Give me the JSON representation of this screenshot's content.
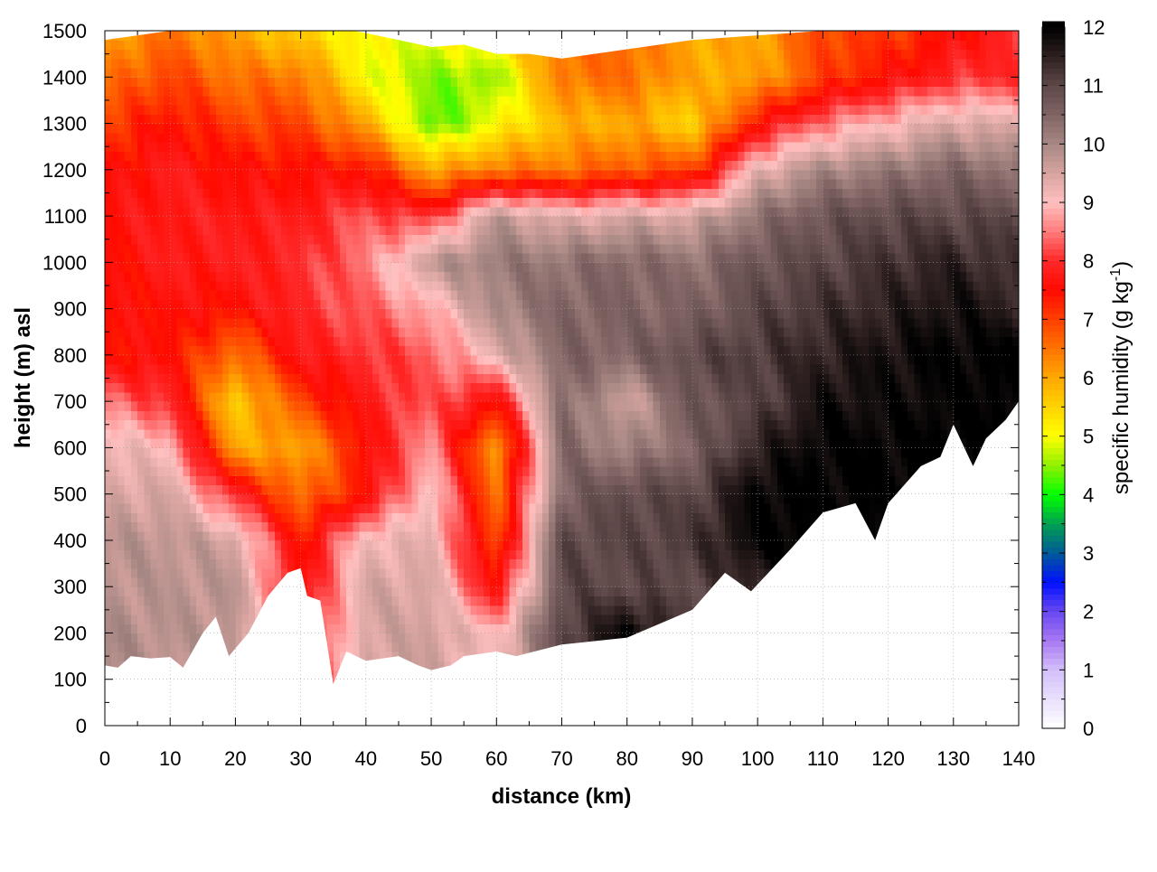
{
  "chart_data": {
    "type": "heatmap",
    "xlabel": "distance (km)",
    "ylabel": "height (m) asl",
    "colorbar_label": "specific humidity (g kg",
    "colorbar_label_sup": "-1",
    "colorbar_label_end": ")",
    "xlim": [
      0,
      140
    ],
    "ylim": [
      0,
      1500
    ],
    "clim": [
      0,
      12
    ],
    "grid": true,
    "x_ticks": [
      "0",
      "10",
      "20",
      "30",
      "40",
      "50",
      "60",
      "70",
      "80",
      "90",
      "100",
      "110",
      "120",
      "130",
      "140"
    ],
    "y_ticks": [
      "0",
      "100",
      "200",
      "300",
      "400",
      "500",
      "600",
      "700",
      "800",
      "900",
      "1000",
      "1100",
      "1200",
      "1300",
      "1400",
      "1500"
    ],
    "colorbar_ticks": [
      "0",
      "1",
      "2",
      "3",
      "4",
      "5",
      "6",
      "7",
      "8",
      "9",
      "10",
      "11",
      "12"
    ],
    "grid_x_km": [
      0,
      10,
      20,
      30,
      40,
      50,
      60,
      70,
      80,
      90,
      100,
      110,
      120,
      130,
      140
    ],
    "grid_height_m": [
      100,
      200,
      300,
      400,
      500,
      600,
      700,
      800,
      900,
      1000,
      1100,
      1200,
      1300,
      1400,
      1500
    ],
    "values": [
      [
        10,
        9.8,
        9.8,
        7.5,
        9.5,
        9.6,
        9,
        11,
        12,
        11,
        11.5,
        12,
        12,
        12,
        12
      ],
      [
        10,
        9.8,
        9.8,
        7.5,
        9.5,
        9.6,
        9,
        11,
        12,
        11,
        11.5,
        12,
        12,
        12,
        12
      ],
      [
        9.8,
        9.8,
        9.8,
        7.5,
        9.5,
        9.5,
        7.5,
        11,
        11,
        11,
        11.5,
        12,
        12,
        12,
        12
      ],
      [
        9.8,
        9.8,
        9.5,
        7.3,
        9.2,
        9.3,
        6.8,
        11,
        11,
        11.2,
        12,
        12,
        12,
        12,
        12
      ],
      [
        9.5,
        9.5,
        8,
        6.5,
        7.5,
        9.2,
        6.5,
        10.5,
        11,
        11,
        12,
        12,
        12,
        12,
        12
      ],
      [
        9.3,
        9,
        6,
        6,
        7.5,
        8.7,
        6,
        10.5,
        10,
        10.5,
        11.5,
        12,
        12,
        12,
        12
      ],
      [
        8.5,
        8,
        5.5,
        7,
        7.8,
        8.3,
        7.5,
        10.5,
        9.5,
        10.8,
        11,
        11.8,
        11.8,
        12,
        12
      ],
      [
        7.5,
        7.5,
        6.5,
        7.8,
        8,
        8.3,
        9.3,
        10.5,
        10.5,
        11,
        11.2,
        11.5,
        11.8,
        12,
        12
      ],
      [
        7.5,
        7.6,
        7.5,
        8,
        8.3,
        8.8,
        10,
        10.5,
        10.5,
        10.5,
        11,
        11.3,
        11.5,
        11.8,
        11.5
      ],
      [
        7.5,
        7.8,
        7.8,
        8,
        8.5,
        9.8,
        10.2,
        10.3,
        10.5,
        10.3,
        10.8,
        11,
        11.3,
        11.5,
        11.2
      ],
      [
        7.6,
        7.8,
        7.8,
        7.8,
        8.3,
        8,
        9.8,
        9.3,
        9.5,
        9.5,
        10.3,
        10.8,
        11,
        11,
        11
      ],
      [
        7.5,
        7.8,
        7.5,
        7.5,
        7.5,
        6,
        6.5,
        6.5,
        6.8,
        7,
        9.3,
        10,
        10.2,
        10.5,
        10.3
      ],
      [
        7,
        7.5,
        7,
        7,
        6,
        4.2,
        5,
        5.8,
        6,
        5.5,
        7.5,
        8.5,
        9,
        9.5,
        9.3
      ],
      [
        6.5,
        7,
        6.5,
        6.5,
        5,
        4.5,
        4.5,
        6.5,
        6.6,
        6,
        6,
        7,
        7.5,
        8,
        8
      ],
      [
        6,
        6.5,
        6,
        5.5,
        5,
        5,
        5.5,
        6.5,
        6.6,
        6,
        6,
        7,
        7,
        7.5,
        8
      ]
    ],
    "ground_height": [
      [
        0,
        130
      ],
      [
        2,
        125
      ],
      [
        4,
        150
      ],
      [
        7,
        145
      ],
      [
        10,
        148
      ],
      [
        12,
        125
      ],
      [
        15,
        200
      ],
      [
        17,
        235
      ],
      [
        19,
        150
      ],
      [
        22,
        200
      ],
      [
        25,
        280
      ],
      [
        28,
        330
      ],
      [
        30,
        340
      ],
      [
        31,
        280
      ],
      [
        33,
        270
      ],
      [
        35,
        90
      ],
      [
        37,
        160
      ],
      [
        40,
        140
      ],
      [
        45,
        150
      ],
      [
        48,
        130
      ],
      [
        50,
        120
      ],
      [
        53,
        130
      ],
      [
        55,
        150
      ],
      [
        60,
        160
      ],
      [
        63,
        150
      ],
      [
        70,
        175
      ],
      [
        80,
        190
      ],
      [
        85,
        220
      ],
      [
        90,
        250
      ],
      [
        95,
        330
      ],
      [
        99,
        290
      ],
      [
        105,
        380
      ],
      [
        110,
        460
      ],
      [
        115,
        480
      ],
      [
        118,
        400
      ],
      [
        120,
        480
      ],
      [
        125,
        560
      ],
      [
        128,
        580
      ],
      [
        130,
        650
      ],
      [
        133,
        560
      ],
      [
        135,
        620
      ],
      [
        138,
        660
      ],
      [
        140,
        700
      ]
    ],
    "top_boundary": [
      [
        0,
        1480
      ],
      [
        10,
        1500
      ],
      [
        38,
        1500
      ],
      [
        40,
        1495
      ],
      [
        45,
        1480
      ],
      [
        50,
        1465
      ],
      [
        55,
        1470
      ],
      [
        60,
        1450
      ],
      [
        65,
        1450
      ],
      [
        70,
        1440
      ],
      [
        80,
        1460
      ],
      [
        90,
        1480
      ],
      [
        100,
        1490
      ],
      [
        110,
        1500
      ],
      [
        140,
        1500
      ]
    ],
    "colormap": [
      [
        0,
        "#ffffff"
      ],
      [
        1,
        "#d4c0fa"
      ],
      [
        1.5,
        "#a878f2"
      ],
      [
        2,
        "#6848f0"
      ],
      [
        2.5,
        "#0010ff"
      ],
      [
        3,
        "#005a9a"
      ],
      [
        3.5,
        "#00a050"
      ],
      [
        4,
        "#00ff00"
      ],
      [
        4.5,
        "#90f000"
      ],
      [
        5,
        "#ffff00"
      ],
      [
        5.5,
        "#ffd400"
      ],
      [
        6,
        "#ffa800"
      ],
      [
        6.5,
        "#ff7400"
      ],
      [
        7,
        "#ff4000"
      ],
      [
        7.5,
        "#ff0a00"
      ],
      [
        8,
        "#ff2828"
      ],
      [
        8.5,
        "#ff7a7a"
      ],
      [
        9,
        "#ffc0c0"
      ],
      [
        9.5,
        "#d8a4a0"
      ],
      [
        10,
        "#a88884"
      ],
      [
        10.5,
        "#806464"
      ],
      [
        11,
        "#5e4848"
      ],
      [
        11.5,
        "#2e2020"
      ],
      [
        12,
        "#000000"
      ]
    ]
  }
}
